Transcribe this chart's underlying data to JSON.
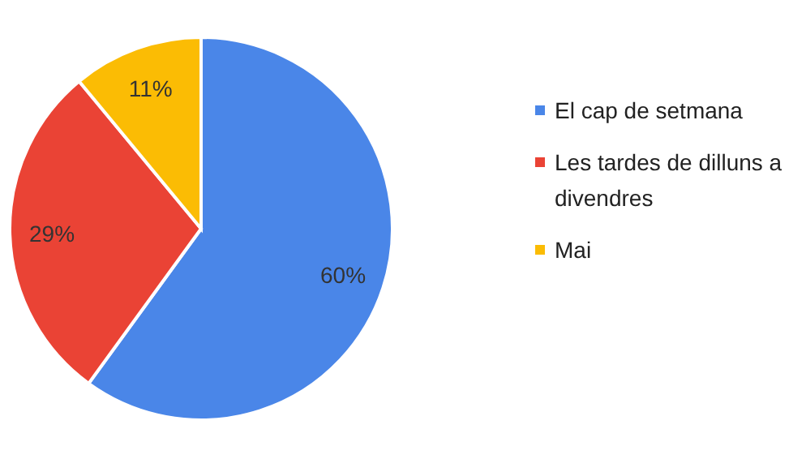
{
  "chart_data": {
    "type": "pie",
    "categories": [
      "El cap de setmana",
      "Les tardes de dilluns a divendres",
      "Mai"
    ],
    "values": [
      60,
      29,
      11
    ],
    "colors": [
      "#4a86e8",
      "#ea4335",
      "#fbbc04"
    ],
    "value_labels": [
      "60%",
      "29%",
      "11%"
    ],
    "legend": "right"
  }
}
